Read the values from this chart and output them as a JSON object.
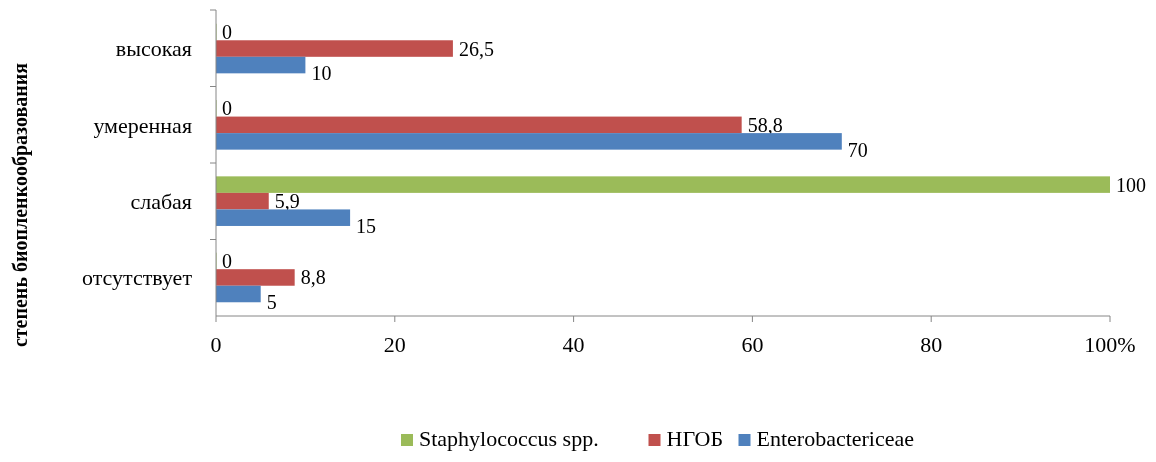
{
  "chart_data": {
    "type": "bar",
    "orientation": "horizontal",
    "ylabel": "степень биопленкообразования",
    "categories": [
      "высокая",
      "умеренная",
      "слабая",
      "отсутствует"
    ],
    "series": [
      {
        "name": "Staphylococcus spp.",
        "color": "#9bbb59",
        "values": [
          0,
          0,
          100,
          0
        ],
        "value_labels": [
          "0",
          "0",
          "100",
          "0"
        ]
      },
      {
        "name": "НГОБ",
        "color": "#c0504d",
        "values": [
          26.5,
          58.8,
          5.9,
          8.8
        ],
        "value_labels": [
          "26,5",
          "58,8",
          "5,9",
          "8,8"
        ]
      },
      {
        "name": "Enterobactericeae",
        "color": "#4f81bd",
        "values": [
          10,
          70,
          15,
          5
        ],
        "value_labels": [
          "10",
          "70",
          "15",
          "5"
        ]
      }
    ],
    "xlim": [
      0,
      100
    ],
    "xticks": [
      0,
      20,
      40,
      60,
      80,
      {
        "value": 100,
        "label": "100%"
      }
    ],
    "grid": false,
    "legend": "bottom"
  }
}
